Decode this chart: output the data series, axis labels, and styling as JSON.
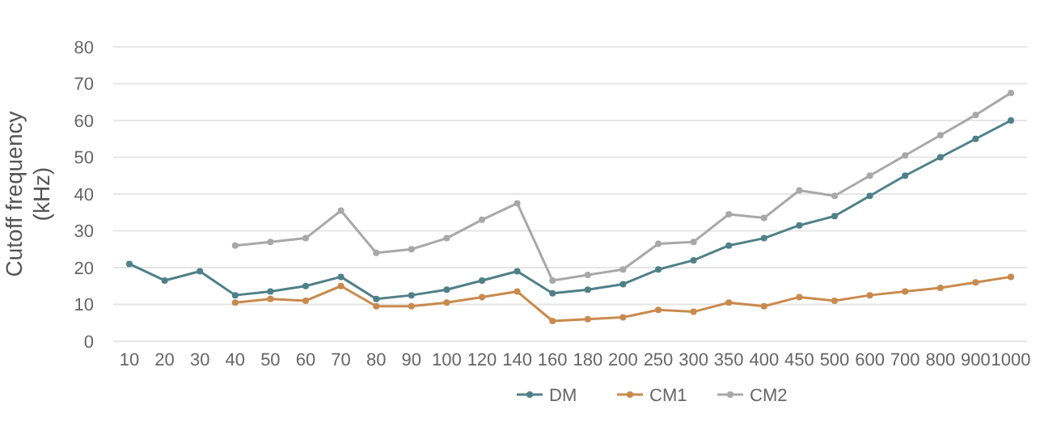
{
  "chart_data": {
    "type": "line",
    "ylabel": "Cutoff frequency\n(kHz)",
    "categories": [
      "10",
      "20",
      "30",
      "40",
      "50",
      "60",
      "70",
      "80",
      "90",
      "100",
      "120",
      "140",
      "160",
      "180",
      "200",
      "250",
      "300",
      "350",
      "400",
      "450",
      "500",
      "600",
      "700",
      "800",
      "900",
      "1000"
    ],
    "series": [
      {
        "name": "DM",
        "color": "#4f8088",
        "values": [
          21,
          16.5,
          19,
          12.5,
          13.5,
          15,
          17.5,
          11.5,
          12.5,
          14,
          16.5,
          19,
          13,
          14,
          15.5,
          19.5,
          22,
          26,
          28,
          31.5,
          34,
          39.5,
          45,
          50,
          55,
          60
        ]
      },
      {
        "name": "CM1",
        "color": "#c98a4e",
        "values": [
          null,
          null,
          null,
          10.5,
          11.5,
          11,
          15,
          9.5,
          9.5,
          10.5,
          12,
          13.5,
          5.5,
          6,
          6.5,
          8.5,
          8,
          10.5,
          9.5,
          12,
          11,
          12.5,
          13.5,
          14.5,
          16,
          17.5
        ]
      },
      {
        "name": "CM2",
        "color": "#a8a8a8",
        "values": [
          null,
          null,
          null,
          26,
          27,
          28,
          35.5,
          24,
          25,
          28,
          33,
          37.5,
          16.5,
          18,
          19.5,
          26.5,
          27,
          34.5,
          33.5,
          41,
          39.5,
          45,
          50.5,
          56,
          61.5,
          67.5
        ]
      }
    ],
    "ylim": [
      0,
      80
    ],
    "yticks": [
      0,
      10,
      20,
      30,
      40,
      50,
      60,
      70,
      80
    ],
    "grid": "y",
    "legend": "bottom",
    "marker": "circle",
    "line_style": "solid"
  }
}
